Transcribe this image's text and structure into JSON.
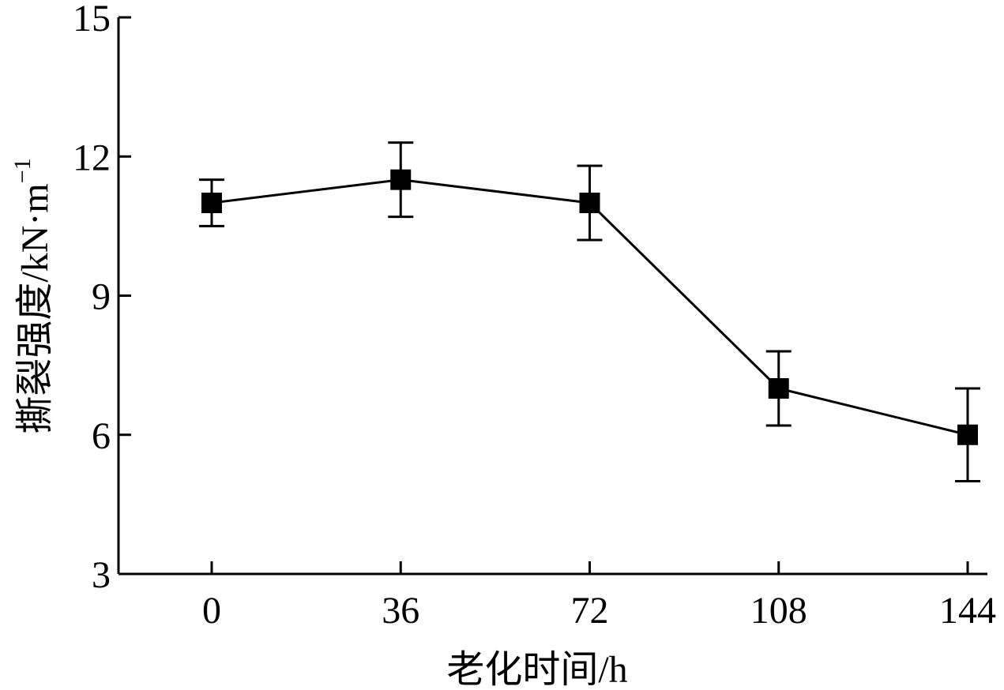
{
  "chart_data": {
    "type": "line",
    "xlabel": "老化时间/h",
    "ylabel": "撕裂强度/kN·m",
    "ylabel_sup": "−1",
    "x": [
      0,
      36,
      72,
      108,
      144
    ],
    "x_tick_labels": [
      "0",
      "36",
      "72",
      "108",
      "144"
    ],
    "y_ticks": [
      3,
      6,
      9,
      12,
      15
    ],
    "y_tick_labels": [
      "3",
      "6",
      "9",
      "12",
      "15"
    ],
    "ylim": [
      3,
      15
    ],
    "series": [
      {
        "values": [
          11.0,
          11.5,
          11.0,
          7.0,
          6.0
        ],
        "error": [
          0.5,
          0.8,
          0.8,
          0.8,
          1.0
        ],
        "marker": "square",
        "color": "#000000"
      }
    ],
    "grid": false,
    "legend": "none"
  }
}
